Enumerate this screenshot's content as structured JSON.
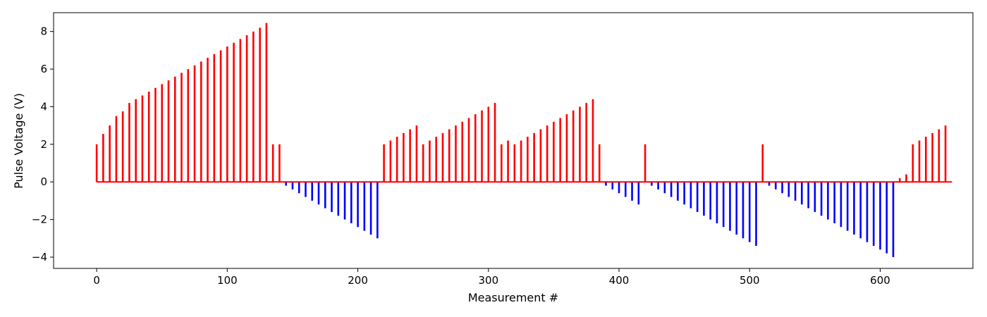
{
  "chart_data": {
    "type": "bar",
    "title": "",
    "xlabel": "Measurement #",
    "ylabel": "Pulse Voltage (V)",
    "xlim": [
      -33,
      671
    ],
    "ylim": [
      -4.6,
      9.0
    ],
    "xticks": [
      0,
      100,
      200,
      300,
      400,
      500,
      600
    ],
    "yticks": [
      -4,
      -2,
      0,
      2,
      4,
      6,
      8
    ],
    "grid": false,
    "legend": "none",
    "colors": {
      "positive": "#ff0000",
      "negative": "#0000ff",
      "axes": "#000000"
    },
    "baseline": {
      "x_start": 0,
      "x_end": 655,
      "y": 0
    },
    "series": [
      {
        "color": "#ff0000",
        "points": [
          [
            0,
            2.0
          ],
          [
            5,
            2.55
          ],
          [
            10,
            3.0
          ],
          [
            15,
            3.5
          ],
          [
            20,
            3.75
          ],
          [
            25,
            4.2
          ],
          [
            30,
            4.4
          ],
          [
            35,
            4.6
          ],
          [
            40,
            4.8
          ],
          [
            45,
            5.0
          ],
          [
            50,
            5.2
          ],
          [
            55,
            5.4
          ],
          [
            60,
            5.6
          ],
          [
            65,
            5.8
          ],
          [
            70,
            6.0
          ],
          [
            75,
            6.2
          ],
          [
            80,
            6.4
          ],
          [
            85,
            6.6
          ],
          [
            90,
            6.8
          ],
          [
            95,
            7.0
          ],
          [
            100,
            7.2
          ],
          [
            105,
            7.4
          ],
          [
            110,
            7.6
          ],
          [
            115,
            7.8
          ],
          [
            120,
            8.0
          ],
          [
            125,
            8.2
          ],
          [
            130,
            8.45
          ],
          [
            135,
            2.0
          ],
          [
            140,
            2.0
          ],
          [
            220,
            2.0
          ],
          [
            225,
            2.2
          ],
          [
            230,
            2.4
          ],
          [
            235,
            2.6
          ],
          [
            240,
            2.8
          ],
          [
            245,
            3.0
          ],
          [
            250,
            2.0
          ],
          [
            255,
            2.2
          ],
          [
            260,
            2.4
          ],
          [
            265,
            2.6
          ],
          [
            270,
            2.8
          ],
          [
            275,
            3.0
          ],
          [
            280,
            3.2
          ],
          [
            285,
            3.4
          ],
          [
            290,
            3.6
          ],
          [
            295,
            3.8
          ],
          [
            300,
            4.0
          ],
          [
            305,
            4.2
          ],
          [
            310,
            2.0
          ],
          [
            315,
            2.2
          ],
          [
            320,
            2.0
          ],
          [
            325,
            2.2
          ],
          [
            330,
            2.4
          ],
          [
            335,
            2.6
          ],
          [
            340,
            2.8
          ],
          [
            345,
            3.0
          ],
          [
            350,
            3.2
          ],
          [
            355,
            3.4
          ],
          [
            360,
            3.6
          ],
          [
            365,
            3.8
          ],
          [
            370,
            4.0
          ],
          [
            375,
            4.2
          ],
          [
            380,
            4.4
          ],
          [
            385,
            2.0
          ],
          [
            420,
            2.0
          ],
          [
            510,
            2.0
          ],
          [
            615,
            0.2
          ],
          [
            620,
            0.4
          ],
          [
            625,
            2.0
          ],
          [
            630,
            2.2
          ],
          [
            635,
            2.4
          ],
          [
            640,
            2.6
          ],
          [
            645,
            2.8
          ],
          [
            650,
            3.0
          ]
        ]
      },
      {
        "color": "#0000ff",
        "points": [
          [
            145,
            -0.2
          ],
          [
            150,
            -0.4
          ],
          [
            155,
            -0.6
          ],
          [
            160,
            -0.8
          ],
          [
            165,
            -1.0
          ],
          [
            170,
            -1.2
          ],
          [
            175,
            -1.4
          ],
          [
            180,
            -1.6
          ],
          [
            185,
            -1.8
          ],
          [
            190,
            -2.0
          ],
          [
            195,
            -2.2
          ],
          [
            200,
            -2.4
          ],
          [
            205,
            -2.6
          ],
          [
            210,
            -2.8
          ],
          [
            215,
            -3.0
          ],
          [
            390,
            -0.2
          ],
          [
            395,
            -0.4
          ],
          [
            400,
            -0.6
          ],
          [
            405,
            -0.8
          ],
          [
            410,
            -1.0
          ],
          [
            415,
            -1.2
          ],
          [
            425,
            -0.2
          ],
          [
            430,
            -0.4
          ],
          [
            435,
            -0.6
          ],
          [
            440,
            -0.8
          ],
          [
            445,
            -1.0
          ],
          [
            450,
            -1.2
          ],
          [
            455,
            -1.4
          ],
          [
            460,
            -1.6
          ],
          [
            465,
            -1.8
          ],
          [
            470,
            -2.0
          ],
          [
            475,
            -2.2
          ],
          [
            480,
            -2.4
          ],
          [
            485,
            -2.6
          ],
          [
            490,
            -2.8
          ],
          [
            495,
            -3.0
          ],
          [
            500,
            -3.2
          ],
          [
            505,
            -3.4
          ],
          [
            515,
            -0.2
          ],
          [
            520,
            -0.4
          ],
          [
            525,
            -0.6
          ],
          [
            530,
            -0.8
          ],
          [
            535,
            -1.0
          ],
          [
            540,
            -1.2
          ],
          [
            545,
            -1.4
          ],
          [
            550,
            -1.6
          ],
          [
            555,
            -1.8
          ],
          [
            560,
            -2.0
          ],
          [
            565,
            -2.2
          ],
          [
            570,
            -2.4
          ],
          [
            575,
            -2.6
          ],
          [
            580,
            -2.8
          ],
          [
            585,
            -3.0
          ],
          [
            590,
            -3.2
          ],
          [
            595,
            -3.4
          ],
          [
            600,
            -3.6
          ],
          [
            605,
            -3.8
          ],
          [
            610,
            -4.0
          ]
        ]
      }
    ]
  }
}
